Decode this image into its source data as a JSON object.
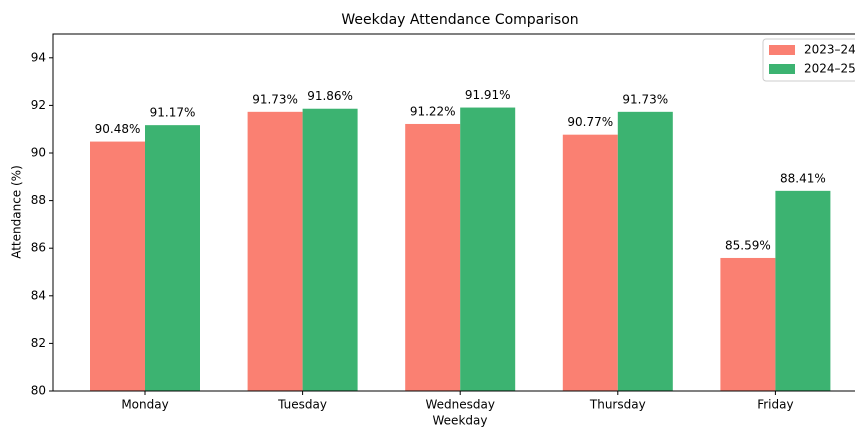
{
  "chart_data": {
    "type": "bar",
    "title": "Weekday Attendance Comparison",
    "xlabel": "Weekday",
    "ylabel": "Attendance (%)",
    "categories": [
      "Monday",
      "Tuesday",
      "Wednesday",
      "Thursday",
      "Friday"
    ],
    "series": [
      {
        "name": "2023–24",
        "color": "#fa8072",
        "values": [
          90.48,
          91.73,
          91.22,
          90.77,
          85.59
        ],
        "value_labels": [
          "90.48%",
          "91.73%",
          "91.22%",
          "90.77%",
          "85.59%"
        ]
      },
      {
        "name": "2024–25",
        "color": "#3cb371",
        "values": [
          91.17,
          91.86,
          91.91,
          91.73,
          88.41
        ],
        "value_labels": [
          "91.17%",
          "91.86%",
          "91.91%",
          "91.73%",
          "88.41%"
        ]
      }
    ],
    "ylim": [
      80,
      95
    ],
    "yticks": [
      80,
      82,
      84,
      86,
      88,
      90,
      92,
      94
    ],
    "legend": "upper right"
  }
}
